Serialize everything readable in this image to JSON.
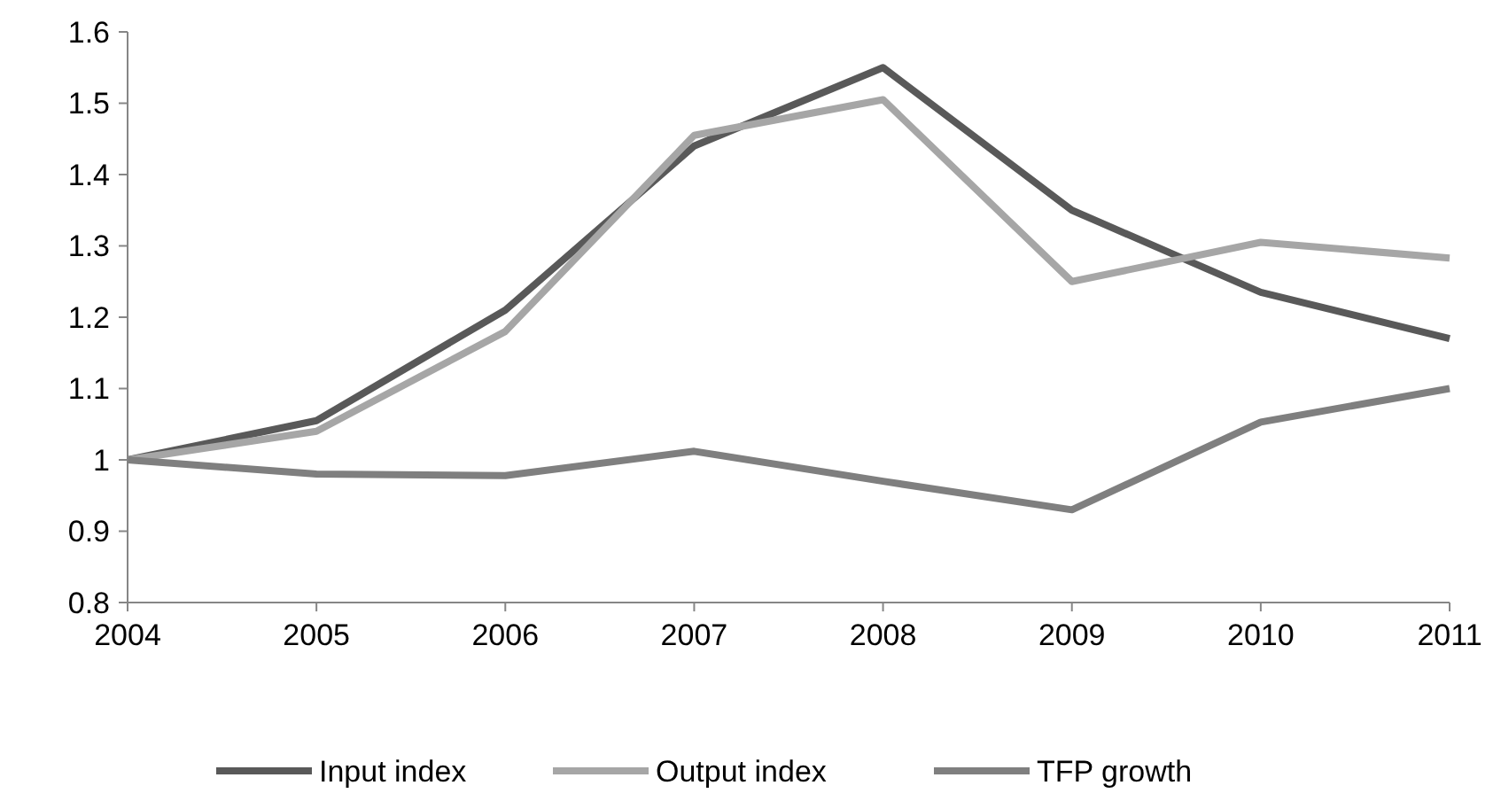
{
  "chart_data": {
    "type": "line",
    "x": [
      2004,
      2005,
      2006,
      2007,
      2008,
      2009,
      2010,
      2011
    ],
    "series": [
      {
        "name": "Input index",
        "color": "#595959",
        "values": [
          1.0,
          1.055,
          1.21,
          1.44,
          1.55,
          1.35,
          1.235,
          1.17
        ]
      },
      {
        "name": "Output index",
        "color": "#a6a6a6",
        "values": [
          1.0,
          1.04,
          1.18,
          1.455,
          1.505,
          1.25,
          1.305,
          1.283
        ]
      },
      {
        "name": "TFP growth",
        "color": "#7f7f7f",
        "values": [
          1.0,
          0.98,
          0.978,
          1.012,
          0.97,
          0.93,
          1.053,
          1.1
        ]
      }
    ],
    "xlim": [
      2004,
      2011
    ],
    "xticks": [
      2004,
      2005,
      2006,
      2007,
      2008,
      2009,
      2010,
      2011
    ],
    "ylim": [
      0.8,
      1.6
    ],
    "yticks": [
      0.8,
      0.9,
      1,
      1.1,
      1.2,
      1.3,
      1.4,
      1.5,
      1.6
    ],
    "grid": false,
    "legend": "bottom",
    "marker": "none",
    "line_style": "solid"
  }
}
